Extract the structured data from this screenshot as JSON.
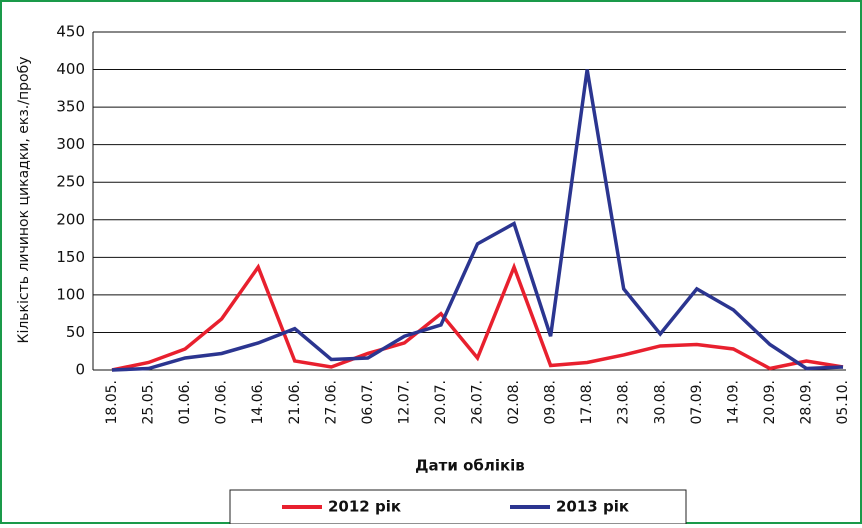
{
  "chart_data": {
    "type": "line",
    "y_axis_label": "Кількість личинок цикадки, екз./пробу",
    "x_axis_label": "Дати обліків",
    "categories": [
      "18.05.",
      "25.05.",
      "01.06.",
      "07.06.",
      "14.06.",
      "21.06.",
      "27.06.",
      "06.07.",
      "12.07.",
      "20.07.",
      "26.07.",
      "02.08.",
      "09.08.",
      "17.08.",
      "23.08.",
      "30.08.",
      "07.09.",
      "14.09.",
      "20.09.",
      "28.09.",
      "05.10."
    ],
    "series": [
      {
        "name": "2012 рік",
        "color": "#e8202e",
        "values": [
          0,
          10,
          28,
          68,
          137,
          12,
          4,
          22,
          36,
          75,
          16,
          137,
          6,
          10,
          20,
          32,
          34,
          28,
          2,
          12,
          4
        ]
      },
      {
        "name": "2013 рік",
        "color": "#2b3590",
        "values": [
          0,
          2,
          16,
          22,
          36,
          55,
          14,
          16,
          45,
          60,
          168,
          195,
          45,
          400,
          108,
          48,
          108,
          80,
          34,
          2,
          4
        ]
      }
    ],
    "ylim": [
      0,
      450
    ],
    "yticks": [
      0,
      50,
      100,
      150,
      200,
      250,
      300,
      350,
      400,
      450
    ],
    "grid": true
  }
}
